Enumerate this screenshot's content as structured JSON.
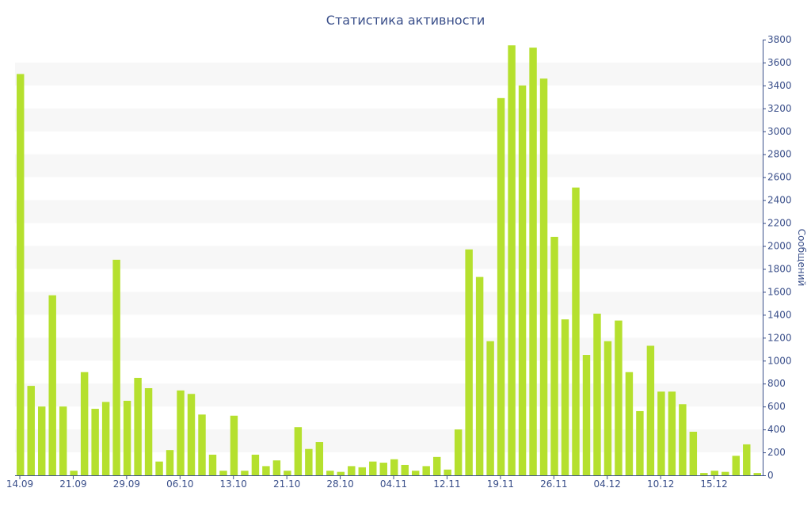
{
  "chart_data": {
    "type": "bar",
    "title": "Статистика активности",
    "ylabel": "Сообщений",
    "ylim": [
      0,
      3800
    ],
    "ytick_step": 200,
    "yaxis_position": "right",
    "grid": "alternating-bands",
    "bar_color": "#b5e02e",
    "text_color": "#3a4f8a",
    "band_color": "#f7f7f7",
    "x_tick_labels": [
      {
        "index": 0,
        "label": "14.09"
      },
      {
        "index": 5,
        "label": "21.09"
      },
      {
        "index": 10,
        "label": "29.09"
      },
      {
        "index": 15,
        "label": "06.10"
      },
      {
        "index": 20,
        "label": "13.10"
      },
      {
        "index": 25,
        "label": "21.10"
      },
      {
        "index": 30,
        "label": "28.10"
      },
      {
        "index": 35,
        "label": "04.11"
      },
      {
        "index": 40,
        "label": "12.11"
      },
      {
        "index": 45,
        "label": "19.11"
      },
      {
        "index": 50,
        "label": "26.11"
      },
      {
        "index": 55,
        "label": "04.12"
      },
      {
        "index": 60,
        "label": "10.12"
      },
      {
        "index": 65,
        "label": "15.12"
      }
    ],
    "values": [
      3500,
      780,
      600,
      1570,
      600,
      40,
      900,
      580,
      640,
      1880,
      650,
      850,
      760,
      120,
      220,
      740,
      710,
      530,
      180,
      40,
      520,
      40,
      180,
      80,
      130,
      40,
      420,
      230,
      290,
      40,
      30,
      80,
      70,
      120,
      110,
      140,
      90,
      40,
      80,
      160,
      50,
      400,
      1970,
      1730,
      1170,
      3290,
      3750,
      3400,
      3730,
      3460,
      2080,
      1360,
      2510,
      1050,
      1410,
      1170,
      1350,
      900,
      560,
      1130,
      730,
      730,
      620,
      380,
      20,
      40,
      30,
      170,
      270,
      20
    ]
  }
}
